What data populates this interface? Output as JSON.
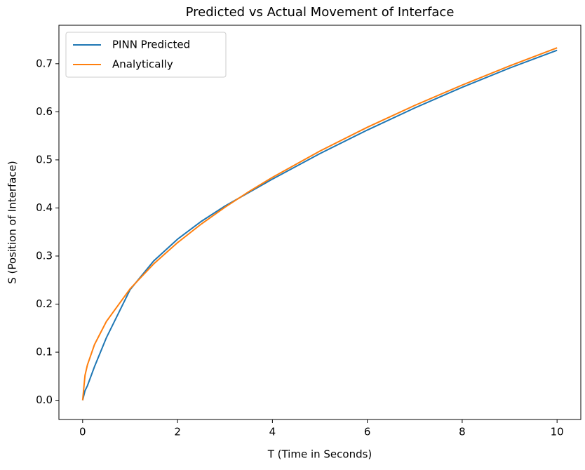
{
  "chart_data": {
    "type": "line",
    "title": "Predicted vs Actual Movement of Interface",
    "xlabel": "T (Time in Seconds)",
    "ylabel": "S (Position of Interface)",
    "x": [
      0,
      0.05,
      0.1,
      0.25,
      0.5,
      1,
      1.5,
      2,
      2.5,
      3,
      3.5,
      4,
      5,
      6,
      7,
      8,
      9,
      10
    ],
    "series": [
      {
        "name": "PINN Predicted",
        "color": "#1f77b4",
        "values": [
          0,
          0.02,
          0.03,
          0.07,
          0.13,
          0.23,
          0.29,
          0.335,
          0.372,
          0.404,
          0.432,
          0.46,
          0.513,
          0.562,
          0.608,
          0.651,
          0.691,
          0.728
        ]
      },
      {
        "name": "Analytically",
        "color": "#ff7f0e",
        "values": [
          0,
          0.0518,
          0.0733,
          0.1159,
          0.1639,
          0.2318,
          0.2839,
          0.3278,
          0.3665,
          0.4015,
          0.4337,
          0.4636,
          0.5183,
          0.5678,
          0.6133,
          0.6556,
          0.6954,
          0.733
        ]
      }
    ],
    "xlim": [
      -0.5,
      10.5
    ],
    "xticks": [
      0,
      2,
      4,
      6,
      8,
      10
    ],
    "ylim": [
      -0.04,
      0.78
    ],
    "yticks": [
      {
        "value": 0,
        "label": "0.0"
      },
      0.1,
      0.2,
      0.3,
      0.4,
      0.5,
      0.6,
      0.7
    ],
    "legend": "upper left",
    "grid": false
  }
}
